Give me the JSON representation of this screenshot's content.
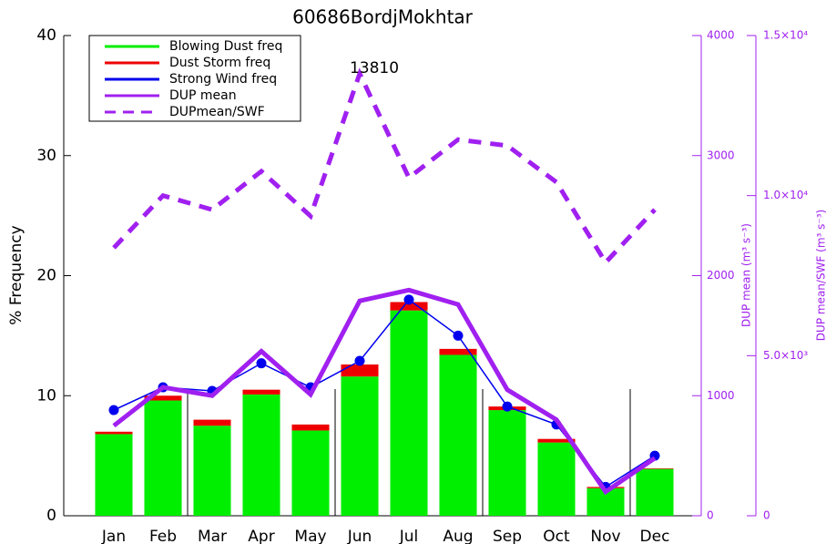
{
  "chart_data": {
    "type": "bar",
    "title": "60686BordjMokhtar",
    "categories": [
      "Jan",
      "Feb",
      "Mar",
      "Apr",
      "May",
      "Jun",
      "Jul",
      "Aug",
      "Sep",
      "Oct",
      "Nov",
      "Dec"
    ],
    "ylabel": "% Frequency",
    "ylim": [
      0,
      40
    ],
    "yticks": [
      0,
      10,
      20,
      30,
      40
    ],
    "y2label": "DUP mean (m³ s⁻³)",
    "y2lim": [
      0,
      4000
    ],
    "y2ticks": [
      0,
      1000,
      2000,
      3000,
      4000
    ],
    "y3label": "DUP mean/SWF (m³ s⁻³)",
    "y3lim": [
      0,
      15000
    ],
    "y3ticks": [
      0,
      {
        "value": 5000,
        "label": "5.0×10³"
      },
      {
        "value": 10000,
        "label": "1.0×10⁴"
      },
      {
        "value": 15000,
        "label": "1.5×10⁴"
      }
    ],
    "annotation": "13810",
    "series": [
      {
        "name": "Blowing Dust freq",
        "color": "#00ee00",
        "type": "bar",
        "values": [
          6.8,
          9.6,
          7.5,
          10.1,
          7.1,
          11.6,
          17.1,
          13.4,
          8.8,
          6.1,
          2.3,
          3.9
        ]
      },
      {
        "name": "Dust Storm freq",
        "color": "#ee0000",
        "type": "bar",
        "values": [
          0.2,
          0.4,
          0.5,
          0.4,
          0.5,
          1.0,
          0.7,
          0.5,
          0.3,
          0.3,
          0.1,
          0.05
        ]
      },
      {
        "name": "Strong Wind freq",
        "color": "#0000ee",
        "type": "line",
        "markers": true,
        "values": [
          8.8,
          10.7,
          10.4,
          12.7,
          10.7,
          12.9,
          18.0,
          15.0,
          9.1,
          7.6,
          2.4,
          5.0
        ]
      },
      {
        "name": "DUP mean",
        "color": "#a020f0",
        "type": "line",
        "axis": "y2",
        "values": [
          750,
          1070,
          1000,
          1370,
          1010,
          1790,
          1880,
          1760,
          1050,
          800,
          200,
          480
        ]
      },
      {
        "name": "DUPmean/SWF",
        "color": "#a020f0",
        "type": "line",
        "axis": "y3",
        "dash": true,
        "values": [
          8370,
          10000,
          9560,
          10760,
          9360,
          13810,
          10560,
          11750,
          11560,
          10420,
          7910,
          9560
        ]
      }
    ]
  }
}
